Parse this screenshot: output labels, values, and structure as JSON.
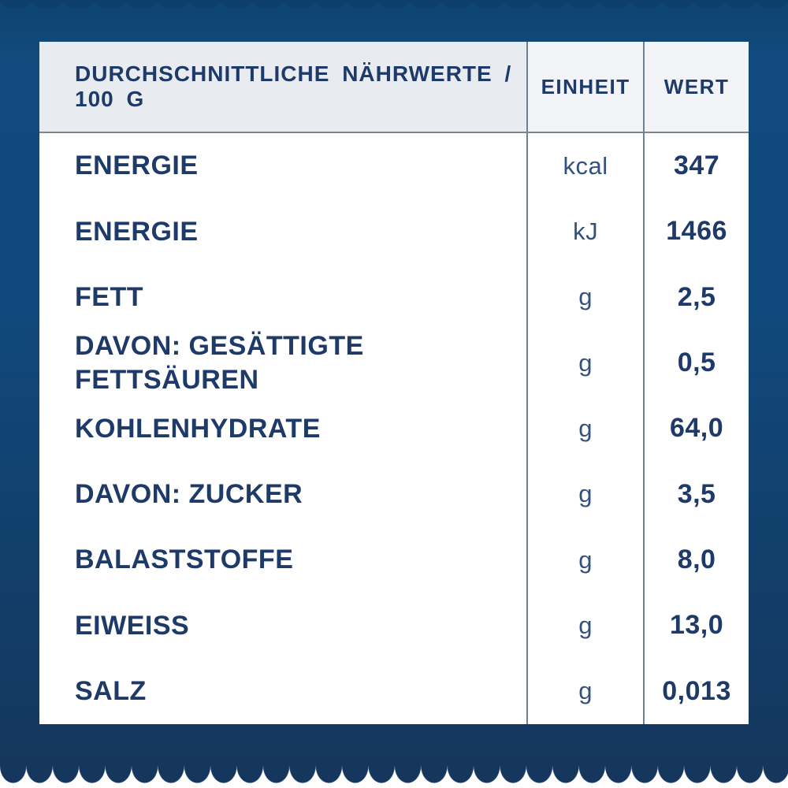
{
  "table": {
    "header": {
      "label": "DURCHSCHNITTLICHE NÄHRWERTE / 100 G",
      "unit": "EINHEIT",
      "value": "WERT"
    },
    "rows": [
      {
        "label": "ENERGIE",
        "unit": "kcal",
        "value": "347"
      },
      {
        "label": "ENERGIE",
        "unit": "kJ",
        "value": "1466"
      },
      {
        "label": "FETT",
        "unit": "g",
        "value": "2,5"
      },
      {
        "label": "DAVON: GESÄTTIGTE FETTSÄUREN",
        "unit": "g",
        "value": "0,5"
      },
      {
        "label": "KOHLENHYDRATE",
        "unit": "g",
        "value": "64,0"
      },
      {
        "label": "DAVON: ZUCKER",
        "unit": "g",
        "value": "3,5"
      },
      {
        "label": "BALASTSTOFFE",
        "unit": "g",
        "value": "8,0"
      },
      {
        "label": "EIWEISS",
        "unit": "g",
        "value": "13,0"
      },
      {
        "label": "SALZ",
        "unit": "g",
        "value": "0,013"
      }
    ]
  },
  "colors": {
    "text_navy": "#1e3a68",
    "unit_navy": "#33517c",
    "background_blue_top": "#114a7c",
    "background_blue_bottom": "#15375e",
    "header_background": "#e8ebef",
    "divider_gray_blue": "#6d7f92"
  }
}
